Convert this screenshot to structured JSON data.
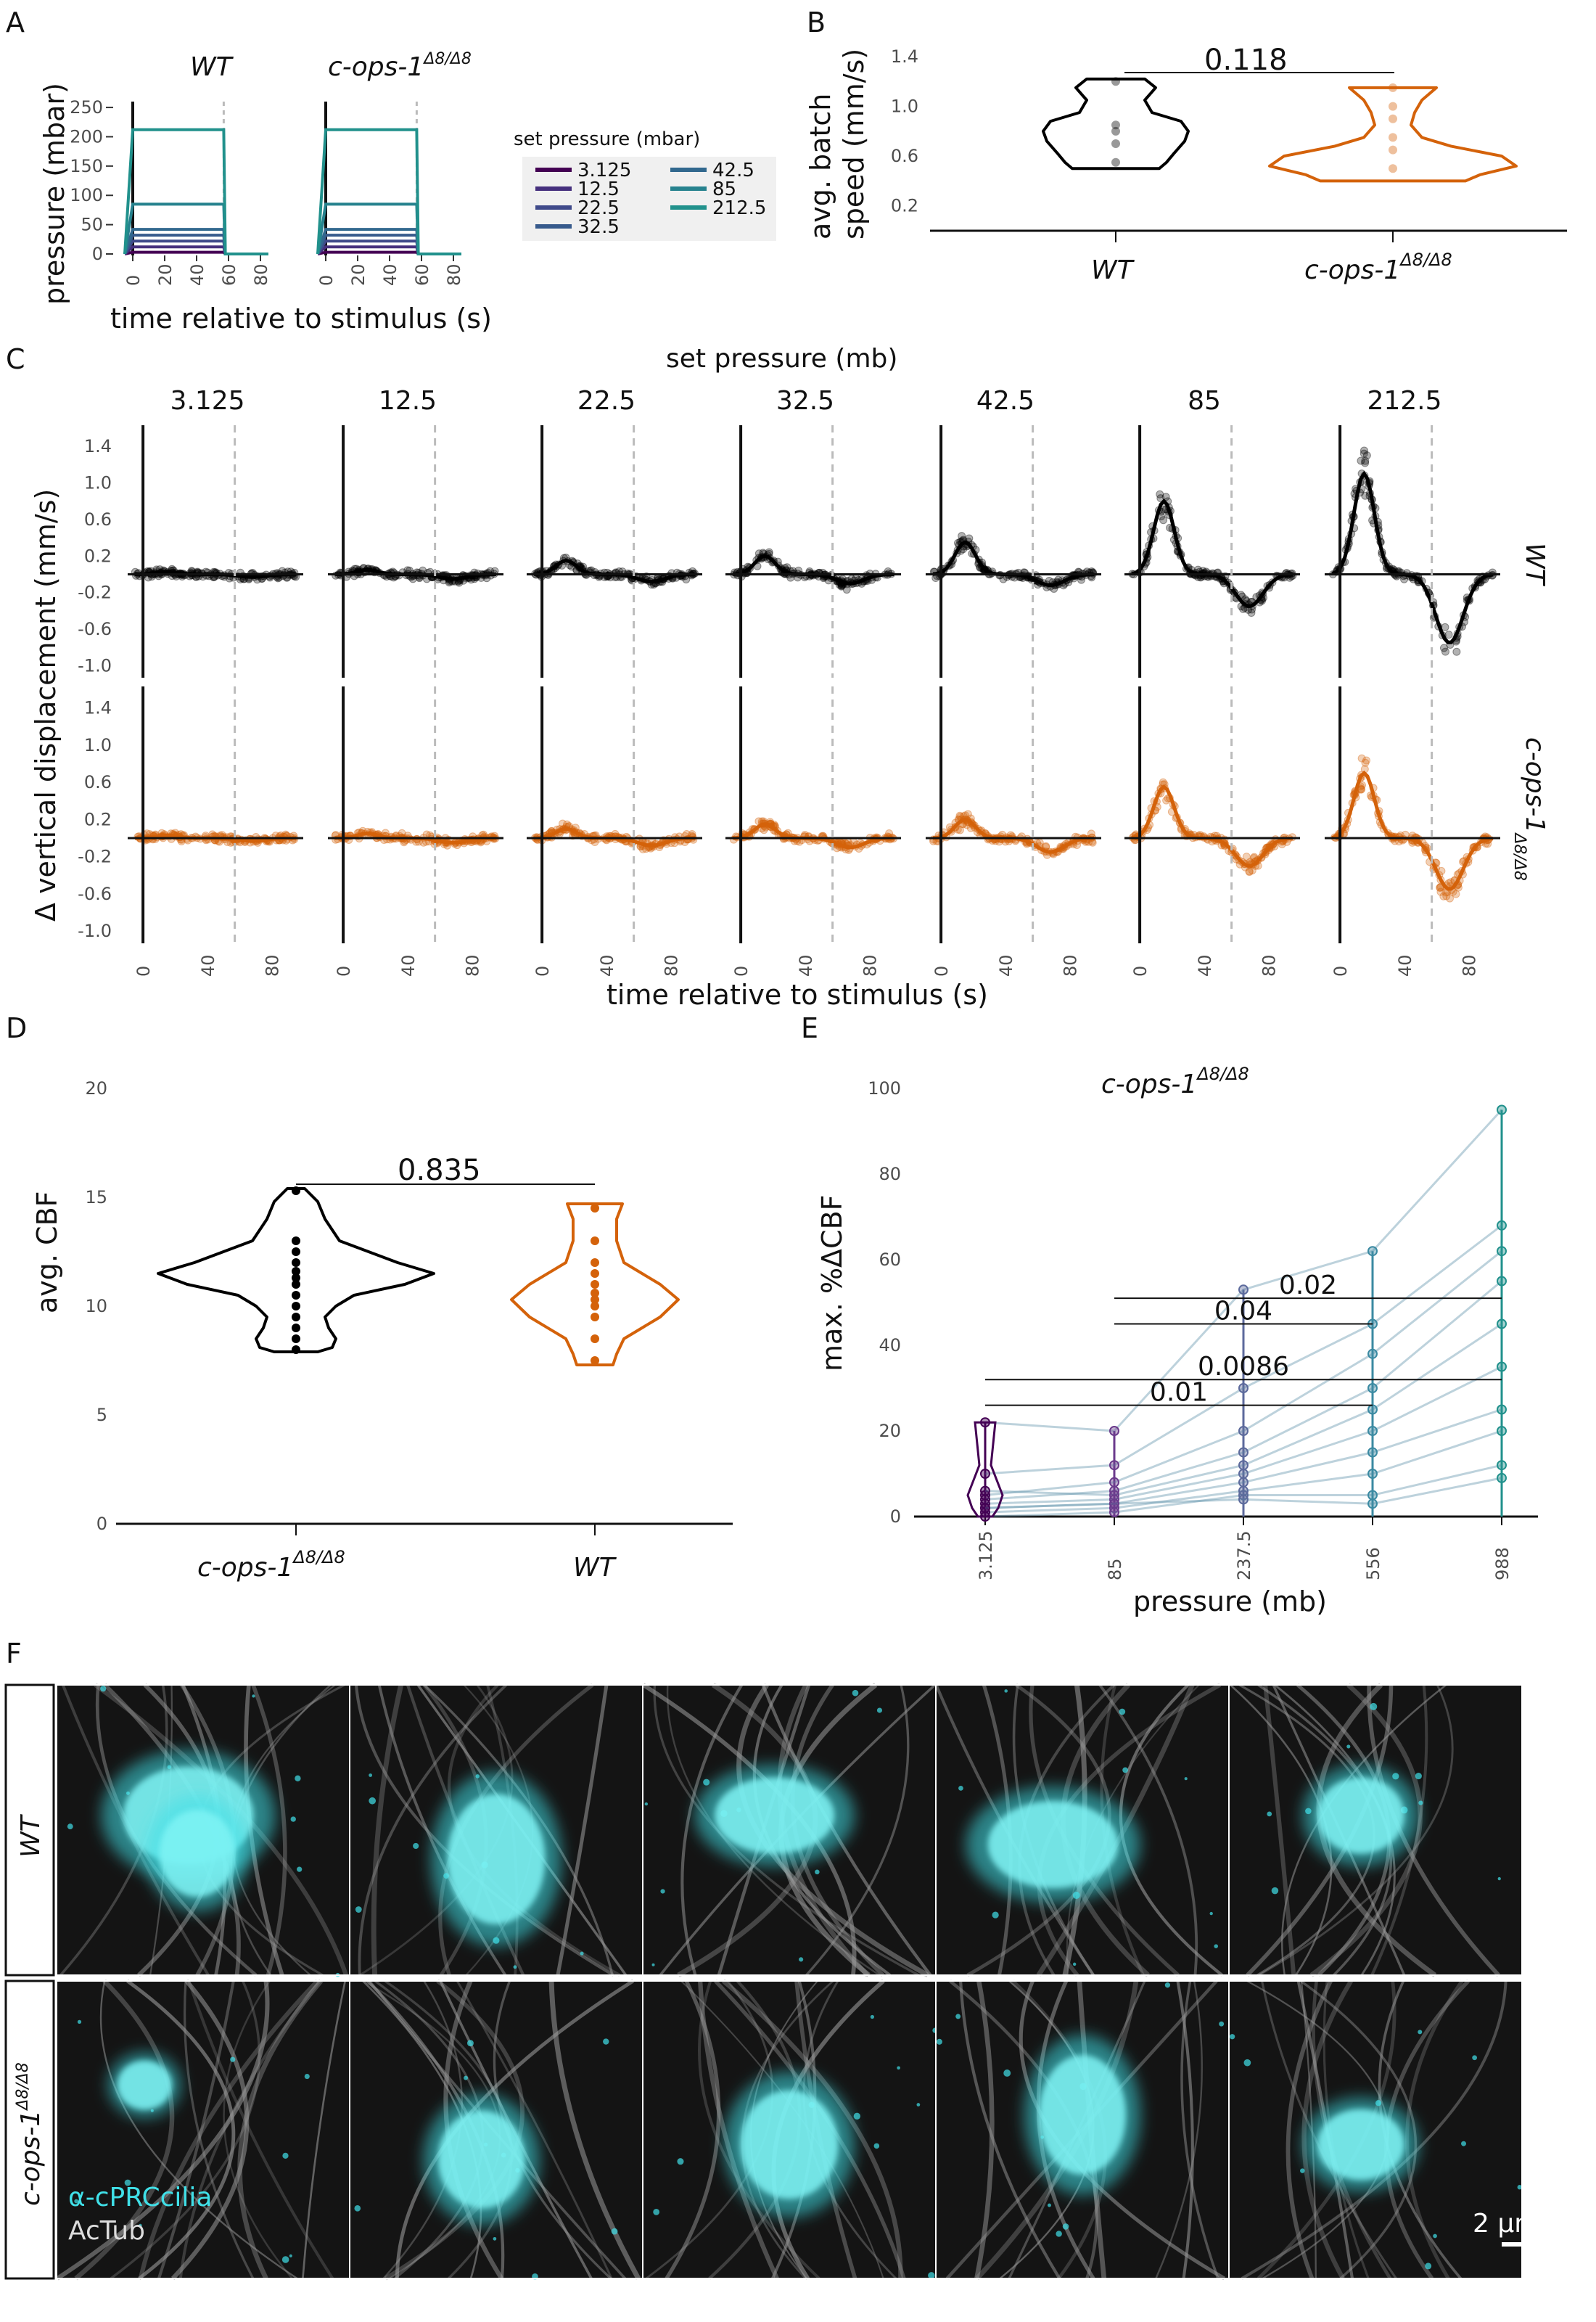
{
  "panels": {
    "A": {
      "letter": "A",
      "genotype_titles": [
        "WT",
        "c-ops-1",
        "Δ8/Δ8"
      ],
      "ylabel": "pressure (mbar)",
      "xlabel": "time relative to stimulus (s)",
      "yticks": [
        "0",
        "50",
        "100",
        "150",
        "200",
        "250"
      ],
      "xticks": [
        "0",
        "20",
        "40",
        "60",
        "80"
      ],
      "legend_title": "set pressure (mbar)",
      "legend_items": [
        "3.125",
        "12.5",
        "22.5",
        "32.5",
        "42.5",
        "85",
        "212.5"
      ],
      "legend_colors": [
        "#440154",
        "#46307e",
        "#3f4a8a",
        "#375a8c",
        "#31688e",
        "#26828e",
        "#21918c"
      ]
    },
    "B": {
      "letter": "B",
      "ylabel_line1": "avg. batch",
      "ylabel_line2": "speed (mm/s)",
      "yticks": [
        "0.2",
        "0.6",
        "1.0",
        "1.4"
      ],
      "groups": [
        "WT",
        "c-ops-1",
        "Δ8/Δ8"
      ],
      "pvalue": "0.118"
    },
    "C": {
      "letter": "C",
      "title": "set pressure (mb)",
      "columns": [
        "3.125",
        "12.5",
        "22.5",
        "32.5",
        "42.5",
        "85",
        "212.5"
      ],
      "ylabel": "Δ vertical displacement (mm/s)",
      "xlabel": "time relative to stimulus (s)",
      "yticks": [
        "-1.0",
        "-0.6",
        "-0.2",
        "0.2",
        "0.6",
        "1.0",
        "1.4"
      ],
      "xticks": [
        "0",
        "40",
        "80"
      ],
      "row_labels": [
        "WT",
        "c-ops-1",
        "Δ8/Δ8"
      ]
    },
    "D": {
      "letter": "D",
      "ylabel": "avg. CBF",
      "yticks": [
        "0",
        "5",
        "10",
        "15",
        "20"
      ],
      "groups": [
        "c-ops-1",
        "Δ8/Δ8",
        "WT"
      ],
      "pvalue": "0.835"
    },
    "E": {
      "letter": "E",
      "title_base": "c-ops-1",
      "title_sup": "Δ8/Δ8",
      "ylabel": "max. %ΔCBF",
      "xlabel": "pressure (mb)",
      "yticks": [
        "0",
        "20",
        "40",
        "60",
        "80",
        "100"
      ],
      "pvalues": [
        "0.02",
        "0.04",
        "0.0086",
        "0.01"
      ]
    },
    "F": {
      "letter": "F",
      "row_labels": [
        "WT",
        "c-ops-1",
        "Δ8/Δ8"
      ],
      "stain1": "α-cPRCcilia",
      "stain2": "AcTub",
      "scalebar": "2 µm",
      "colors": {
        "cyan": "#40e0e8",
        "gray": "#bdbdbd"
      }
    }
  },
  "colors": {
    "wt": "#000000",
    "mutant": "#d4620a",
    "dashed": "#bbbbbb"
  },
  "chart_data": [
    {
      "type": "line",
      "panel": "A",
      "title": "WT",
      "xlabel": "time relative to stimulus (s)",
      "ylabel": "pressure (mbar)",
      "ylim": [
        0,
        260
      ],
      "xlim": [
        -5,
        85
      ],
      "series": [
        {
          "name": "3.125",
          "x": [
            -5,
            0,
            57,
            58,
            85
          ],
          "values": [
            0,
            3,
            3,
            0,
            0
          ]
        },
        {
          "name": "12.5",
          "x": [
            -5,
            0,
            57,
            58,
            85
          ],
          "values": [
            0,
            12,
            12,
            0,
            0
          ]
        },
        {
          "name": "22.5",
          "x": [
            -5,
            0,
            57,
            58,
            85
          ],
          "values": [
            0,
            22,
            22,
            0,
            0
          ]
        },
        {
          "name": "32.5",
          "x": [
            -5,
            0,
            57,
            58,
            85
          ],
          "values": [
            0,
            32,
            32,
            0,
            0
          ]
        },
        {
          "name": "42.5",
          "x": [
            -5,
            0,
            57,
            58,
            85
          ],
          "values": [
            0,
            42,
            42,
            0,
            0
          ]
        },
        {
          "name": "85",
          "x": [
            -5,
            0,
            57,
            58,
            85
          ],
          "values": [
            0,
            85,
            85,
            0,
            0
          ]
        },
        {
          "name": "212.5",
          "x": [
            -5,
            0,
            57,
            58,
            85
          ],
          "values": [
            0,
            212,
            212,
            0,
            0
          ]
        }
      ]
    },
    {
      "type": "line",
      "panel": "A",
      "title": "c-ops-1 Δ8/Δ8",
      "xlabel": "time relative to stimulus (s)",
      "ylim": [
        0,
        260
      ],
      "xlim": [
        -5,
        85
      ],
      "series": [
        {
          "name": "3.125",
          "x": [
            -5,
            0,
            57,
            58,
            85
          ],
          "values": [
            0,
            3,
            3,
            0,
            0
          ]
        },
        {
          "name": "12.5",
          "x": [
            -5,
            0,
            57,
            58,
            85
          ],
          "values": [
            0,
            12,
            12,
            0,
            0
          ]
        },
        {
          "name": "22.5",
          "x": [
            -5,
            0,
            57,
            58,
            85
          ],
          "values": [
            0,
            22,
            22,
            0,
            0
          ]
        },
        {
          "name": "32.5",
          "x": [
            -5,
            0,
            57,
            58,
            85
          ],
          "values": [
            0,
            32,
            32,
            0,
            0
          ]
        },
        {
          "name": "42.5",
          "x": [
            -5,
            0,
            57,
            58,
            85
          ],
          "values": [
            0,
            42,
            42,
            0,
            0
          ]
        },
        {
          "name": "85",
          "x": [
            -5,
            0,
            57,
            58,
            85
          ],
          "values": [
            0,
            85,
            85,
            0,
            0
          ]
        },
        {
          "name": "212.5",
          "x": [
            -5,
            0,
            57,
            58,
            85
          ],
          "values": [
            0,
            212,
            212,
            0,
            0
          ]
        }
      ]
    },
    {
      "type": "violin",
      "panel": "B",
      "ylabel": "avg. batch speed (mm/s)",
      "ylim": [
        0,
        1.4
      ],
      "categories": [
        "WT",
        "c-ops-1 Δ8/Δ8"
      ],
      "series": [
        {
          "name": "WT",
          "values": [
            0.55,
            0.7,
            0.8,
            0.85,
            1.2
          ]
        },
        {
          "name": "c-ops-1 Δ8/Δ8",
          "values": [
            0.5,
            0.65,
            0.75,
            0.9,
            1.0,
            1.15
          ]
        }
      ],
      "annotations": [
        "0.118"
      ]
    },
    {
      "type": "scatter",
      "panel": "C",
      "xlabel": "time relative to stimulus (s)",
      "ylabel": "Δ vertical displacement (mm/s)",
      "ylim": [
        -1.1,
        1.6
      ],
      "xlim": [
        -5,
        95
      ],
      "categories": [
        "3.125",
        "12.5",
        "22.5",
        "32.5",
        "42.5",
        "85",
        "212.5"
      ],
      "peak": {
        "WT": [
          0.03,
          0.05,
          0.15,
          0.2,
          0.35,
          0.8,
          1.1
        ],
        "c-ops-1 Δ8/Δ8": [
          0.03,
          0.05,
          0.1,
          0.15,
          0.2,
          0.55,
          0.7
        ]
      },
      "trough": {
        "WT": [
          -0.03,
          -0.05,
          -0.08,
          -0.1,
          -0.12,
          -0.35,
          -0.75
        ],
        "c-ops-1 Δ8/Δ8": [
          -0.03,
          -0.05,
          -0.08,
          -0.1,
          -0.15,
          -0.3,
          -0.55
        ]
      }
    },
    {
      "type": "violin",
      "panel": "D",
      "ylabel": "avg. CBF",
      "ylim": [
        0,
        20
      ],
      "categories": [
        "c-ops-1 Δ8/Δ8",
        "WT"
      ],
      "series": [
        {
          "name": "c-ops-1 Δ8/Δ8",
          "values": [
            8.0,
            8.5,
            9.0,
            9.5,
            10.0,
            10.5,
            11.0,
            11.3,
            11.6,
            12.0,
            12.5,
            13.0,
            15.3
          ]
        },
        {
          "name": "WT",
          "values": [
            7.5,
            8.5,
            9.5,
            10.0,
            10.3,
            10.6,
            11.0,
            11.5,
            12.0,
            13.0,
            14.5
          ]
        }
      ],
      "annotations": [
        "0.835"
      ]
    },
    {
      "type": "line",
      "panel": "E",
      "title": "c-ops-1 Δ8/Δ8",
      "xlabel": "pressure (mb)",
      "ylabel": "max. %ΔCBF",
      "ylim": [
        0,
        100
      ],
      "categories": [
        "3.125",
        "85",
        "237.5",
        "556",
        "988"
      ],
      "series": [
        {
          "name": "",
          "values": [
            22,
            20,
            53,
            62,
            95
          ]
        },
        {
          "name": "",
          "values": [
            10,
            12,
            30,
            45,
            68
          ]
        },
        {
          "name": "",
          "values": [
            5,
            8,
            20,
            38,
            62
          ]
        },
        {
          "name": "",
          "values": [
            4,
            6,
            15,
            30,
            55
          ]
        },
        {
          "name": "",
          "values": [
            6,
            5,
            12,
            25,
            45
          ]
        },
        {
          "name": "",
          "values": [
            3,
            4,
            10,
            20,
            35
          ]
        },
        {
          "name": "",
          "values": [
            2,
            3,
            8,
            15,
            25
          ]
        },
        {
          "name": "",
          "values": [
            1,
            2,
            6,
            10,
            20
          ]
        },
        {
          "name": "",
          "values": [
            0,
            1,
            5,
            5,
            12
          ]
        },
        {
          "name": "",
          "values": [
            2,
            3,
            4,
            3,
            9
          ]
        }
      ],
      "annotations": [
        "0.02",
        "0.04",
        "0.0086",
        "0.01"
      ]
    }
  ]
}
